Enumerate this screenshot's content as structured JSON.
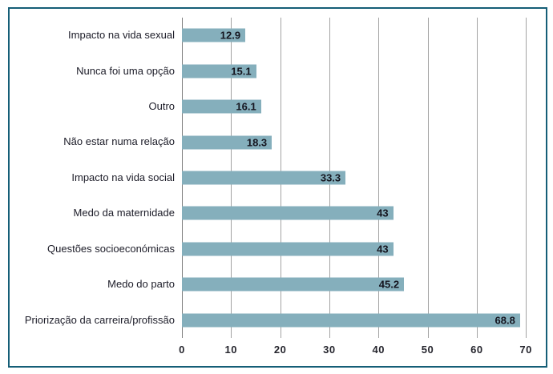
{
  "chart_data": {
    "type": "bar",
    "orientation": "horizontal",
    "title": "",
    "xlabel": "",
    "ylabel": "",
    "categories": [
      "Impacto na vida sexual",
      "Nunca foi uma opção",
      "Outro",
      "Não estar numa relação",
      "Impacto na vida social",
      "Medo da maternidade",
      "Questões socioeconómicas",
      "Medo do parto",
      "Priorização da carreira/profissão"
    ],
    "values": [
      12.9,
      15.1,
      16.1,
      18.3,
      33.3,
      43,
      43,
      45.2,
      68.8
    ],
    "x_ticks": [
      0,
      10,
      20,
      30,
      40,
      50,
      60,
      70
    ],
    "xlim": [
      0,
      70
    ],
    "grid": "vertical",
    "legend_position": "none",
    "value_labels_position": "inside-end",
    "colors": {
      "bar": "#85AFBC",
      "frame_border": "#155E77",
      "gridline": "#A3A3A3",
      "axis_line": "#7E7E7E",
      "text": "#1C1C28"
    }
  }
}
